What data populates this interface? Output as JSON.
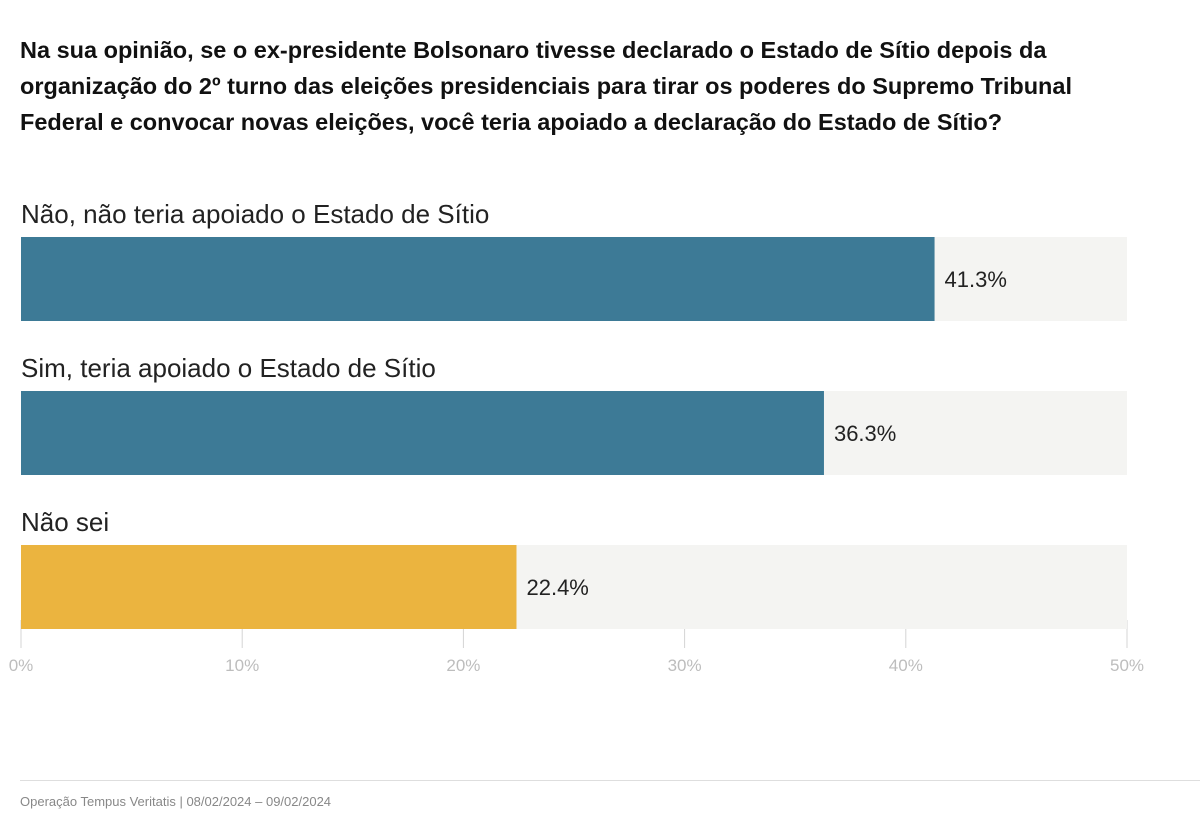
{
  "chart_data": {
    "type": "bar",
    "orientation": "horizontal",
    "title": "Na sua opinião, se o ex-presidente Bolsonaro tivesse declarado o Estado de Sítio depois da organização do 2º turno das eleições presidenciais para tirar os poderes do Supremo Tribunal Federal e convocar novas eleições, você teria apoiado a declaração do Estado de Sítio?",
    "categories": [
      "Não, não teria apoiado o Estado de Sítio",
      "Sim, teria apoiado o Estado de Sítio",
      "Não sei"
    ],
    "values": [
      41.3,
      36.3,
      22.4
    ],
    "value_labels": [
      "41.3%",
      "36.3%",
      "22.4%"
    ],
    "colors": [
      "#3d7a96",
      "#3d7a96",
      "#ebb43f"
    ],
    "track_color": "#f4f4f2",
    "xlim": [
      0,
      50
    ],
    "ticks": [
      0,
      10,
      20,
      30,
      40,
      50
    ],
    "tick_labels": [
      "0%",
      "10%",
      "20%",
      "30%",
      "40%",
      "50%"
    ],
    "grid": true,
    "legend": "none"
  },
  "footer": {
    "text": "Operação Tempus Veritatis | 08/02/2024 – 09/02/2024"
  }
}
